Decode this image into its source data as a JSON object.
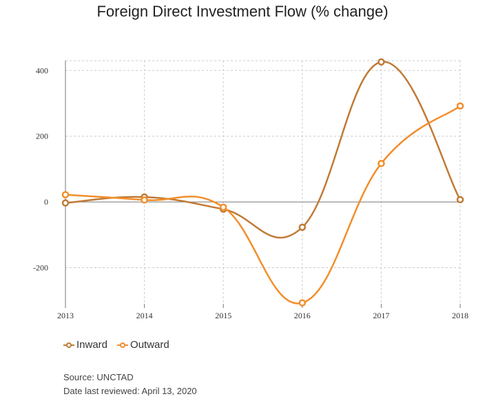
{
  "chart_data": {
    "type": "line",
    "title": "Foreign Direct Investment Flow (% change)",
    "x": [
      "2013",
      "2014",
      "2015",
      "2016",
      "2017",
      "2018"
    ],
    "series": [
      {
        "name": "Inward",
        "values": [
          -3,
          15,
          -22,
          -77,
          426,
          7
        ],
        "color": "#c07a35"
      },
      {
        "name": "Outward",
        "values": [
          22,
          6,
          -16,
          -307,
          117,
          292
        ],
        "color": "#f28e2b"
      }
    ],
    "ylim": [
      -310,
      430
    ],
    "yticks": [
      400,
      200,
      0,
      -200
    ],
    "grid": true,
    "legend_position": "bottom-left"
  },
  "footer": {
    "source": "Source: UNCTAD",
    "reviewed": "Date last reviewed: April 13, 2020"
  }
}
